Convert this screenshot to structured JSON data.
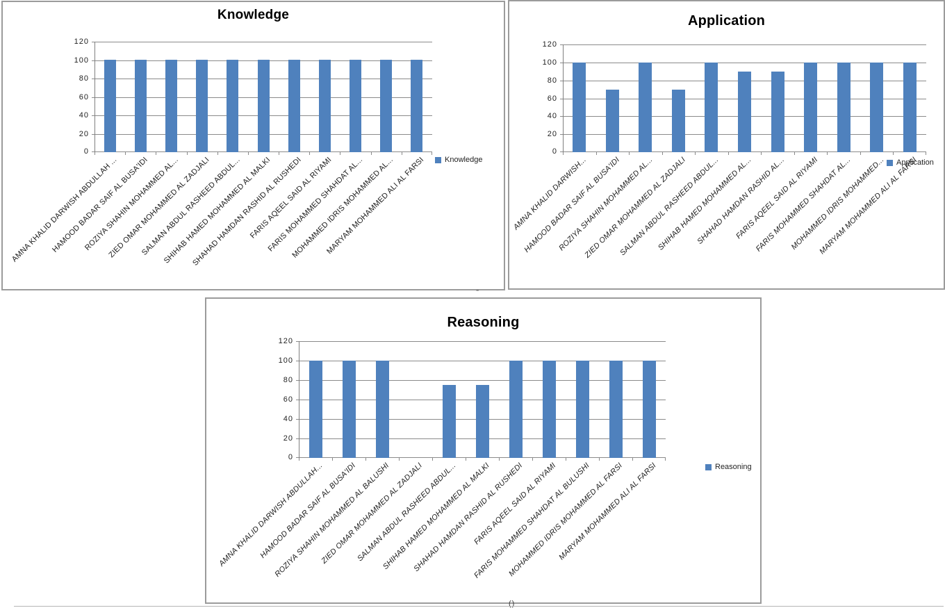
{
  "page": {
    "separator_mark": "-",
    "caption_mark": "()"
  },
  "colors": {
    "bar_fill": "#4f81bd",
    "gridline": "#8a8a8a",
    "axis": "#7f7f7f",
    "box_border": "#9b9b9b",
    "title_text": "#000000",
    "label_text": "#1a1a1a"
  },
  "chart_data": [
    {
      "id": "knowledge",
      "type": "bar",
      "title": "Knowledge",
      "legend": {
        "label": "Knowledge",
        "position": "right",
        "marker_color": "#4f81bd"
      },
      "xlabel": "",
      "ylabel": "",
      "ylim": [
        0,
        120
      ],
      "yticks": [
        0,
        20,
        40,
        60,
        80,
        100,
        120
      ],
      "grid": true,
      "categories": [
        "AMNA KHALID DARWISH ABDULLAH ...",
        "HAMOOD BADAR SAIF AL BUSA'IDI",
        "ROZIYA SHAHIN MOHAMMED AL...",
        "ZIED OMAR MOHAMMED AL ZADJALI",
        "SALMAN ABDUL RASHEED ABDUL...",
        "SHIHAB HAMED MOHAMMED AL MALKI",
        "SHAHAD HAMDAN RASHID AL RUSHEDI",
        "FARIS AQEEL SAID AL RIYAMI",
        "FARIS MOHAMMED SHAHDAT AL...",
        "MOHAMMED IDRIS MOHAMMED AL...",
        "MARYAM MOHAMMED ALI AL FARSI"
      ],
      "values": [
        100,
        100,
        100,
        100,
        100,
        100,
        100,
        100,
        100,
        100,
        100
      ]
    },
    {
      "id": "application",
      "type": "bar",
      "title": "Application",
      "legend": {
        "label": "Application",
        "position": "right",
        "marker_color": "#4f81bd"
      },
      "xlabel": "",
      "ylabel": "",
      "ylim": [
        0,
        120
      ],
      "yticks": [
        0,
        20,
        40,
        60,
        80,
        100,
        120
      ],
      "grid": true,
      "categories": [
        "AMNA KHALID DARWISH...",
        "HAMOOD BADAR SAIF AL BUSA'IDI",
        "ROZIYA SHAHIN MOHAMMED AL...",
        "ZIED OMAR MOHAMMED AL ZADJALI",
        "SALMAN ABDUL RASHEED ABDUL...",
        "SHIHAB HAMED MOHAMMED AL...",
        "SHAHAD HAMDAN RASHID AL...",
        "FARIS AQEEL SAID AL RIYAMI",
        "FARIS MOHAMMED SHAHDAT AL...",
        "MOHAMMED IDRIS MOHAMMED...",
        "MARYAM MOHAMMED ALI AL FARSI"
      ],
      "values": [
        100,
        70,
        100,
        70,
        100,
        90,
        90,
        100,
        100,
        100,
        100
      ]
    },
    {
      "id": "reasoning",
      "type": "bar",
      "title": "Reasoning",
      "legend": {
        "label": "Reasoning",
        "position": "right",
        "marker_color": "#4f81bd"
      },
      "xlabel": "",
      "ylabel": "",
      "ylim": [
        0,
        120
      ],
      "yticks": [
        0,
        20,
        40,
        60,
        80,
        100,
        120
      ],
      "grid": true,
      "categories": [
        "AMNA KHALID DARWISH ABDULLAH...",
        "HAMOOD BADAR SAIF AL BUSA'IDI",
        "ROZIYA SHAHIN MOHAMMED AL BALUSHI",
        "ZIED OMAR MOHAMMED AL ZADJALI",
        "SALMAN ABDUL RASHEED ABDUL...",
        "SHIHAB HAMED MOHAMMED AL MALKI",
        "SHAHAD HAMDAN RASHID AL RUSHEDI",
        "FARIS AQEEL SAID AL RIYAMI",
        "FARIS MOHAMMED SHAHDAT AL BULUSHI",
        "MOHAMMED IDRIS MOHAMMED AL FARSI",
        "MARYAM MOHAMMED ALI AL FARSI"
      ],
      "values": [
        100,
        100,
        100,
        0,
        75,
        75,
        100,
        100,
        100,
        100,
        100
      ]
    }
  ]
}
